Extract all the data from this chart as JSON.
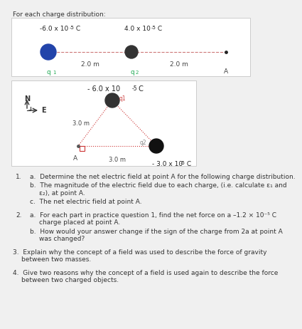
{
  "title": "For each charge distribution:",
  "bg_color": "#f0f0f0",
  "box_color": "#ffffff",
  "border_color": "#cccccc",
  "diagram1": {
    "q1_label": "-6.0 x 10",
    "q1_exp": "-5",
    "q1_unit": " C",
    "q2_label": "4.0 x 10",
    "q2_exp": "-5",
    "q2_unit": " C",
    "dist1": "2.0 m",
    "dist2": "2.0 m",
    "q1_sub": "q",
    "q1_sub2": "1",
    "q2_sub": "q",
    "q2_sub2": "2",
    "A_label": "A",
    "q1_color": "#2244aa",
    "q2_color": "#333333",
    "A_color": "#222222",
    "line_color": "#cc7777"
  },
  "diagram2": {
    "top_label": "- 6.0 x 10",
    "top_exp": "-5",
    "top_unit": " C",
    "bottom_label": "- 3.0 x 10",
    "bottom_exp": "-5",
    "bottom_unit": " C",
    "q1_sub": "q1",
    "q2_sub": "q2",
    "dist_v": "3.0 m",
    "dist_h": "3.0 m",
    "A_label": "A",
    "N_label": "N",
    "E_label": "E",
    "q1_color": "#333333",
    "q2_color": "#111111",
    "line_color": "#cc3333",
    "arrow_color": "#333333",
    "compass_color": "#333333"
  },
  "q1_parts": [
    "a.  Determine the net electric field at point A for the following charge distribution.",
    "b.  The magnitude of the electric field due to each charge, (i.e. calculate ε₁ and",
    "     ε₂), at point A.",
    "c.  The net electric field at point A."
  ],
  "q2_parts": [
    "a.  For each part in practice question 1, find the net force on a –1.2 × 10⁻⁵ C",
    "     charge placed at point A.",
    "b.  How would your answer change if the sign of the charge from 2a at point A",
    "     was changed?"
  ],
  "q3_text": "Explain why the concept of a field was used to describe the force of gravity\nbetween two masses.",
  "q4_text": "Give two reasons why the concept of a field is used again to describe the force\nbetween two charged objects."
}
